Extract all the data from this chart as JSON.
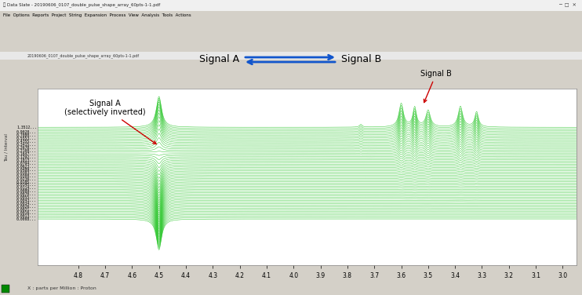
{
  "window_title": "Data Slate - 20190606_0107_double_pulse_shape_array_60pts-1-1.pdf",
  "file_label": "20190606_0107_double_pulse_shape_array_60pts-1-1.pdf",
  "menu_items": "File  Options  Reports  Project  String  Expansion  Process  View  Analysis  Tools  Actions",
  "x_label": "X : parts per Million : Proton",
  "x_min": 3.0,
  "x_max": 4.9,
  "n_traces": 60,
  "signal_a_peak_ppm": 4.5,
  "line_color": "#00BB00",
  "window_bg": "#D4D0C8",
  "plot_bg": "#FFFFFF",
  "annotation_signal_a": "Signal A\n(selectively inverted)",
  "annotation_signal_b": "Signal B",
  "annotation_arrow_color": "#CC0000",
  "x_ticks": [
    4.8,
    4.7,
    4.6,
    4.5,
    4.4,
    4.3,
    4.2,
    4.1,
    4.0,
    3.9,
    3.8,
    3.7,
    3.6,
    3.5,
    3.4,
    3.3,
    3.2,
    3.1,
    3.0
  ],
  "title_bar_color": "#EEEEDD",
  "toolbar_color": "#D4D0C8"
}
